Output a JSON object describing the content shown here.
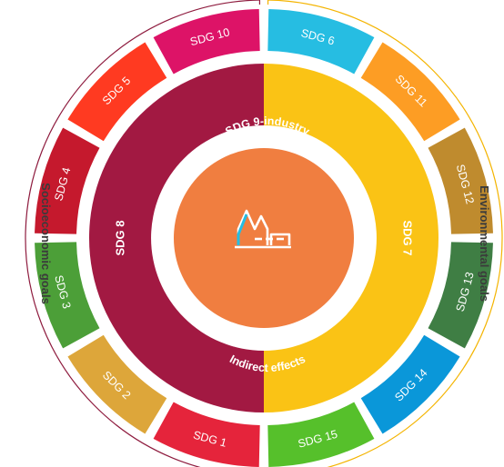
{
  "center": {
    "top_label": "SDG 9-industry",
    "bottom_label": "Indirect effects",
    "icon": "factory-icon",
    "color": "#F07E40"
  },
  "inner_ring": [
    {
      "label": "SDG 7",
      "color": "#FAC315"
    },
    {
      "label": "SDG 8",
      "color": "#A21942"
    }
  ],
  "outer_ring": [
    {
      "label": "SDG 6",
      "color": "#26BDE2"
    },
    {
      "label": "SDG 11",
      "color": "#FD9D24"
    },
    {
      "label": "SDG 12",
      "color": "#BF8B2E"
    },
    {
      "label": "SDG 13",
      "color": "#3F7E44"
    },
    {
      "label": "SDG 14",
      "color": "#0A97D9"
    },
    {
      "label": "SDG 15",
      "color": "#56C02B"
    },
    {
      "label": "SDG 1",
      "color": "#E5243B"
    },
    {
      "label": "SDG 2",
      "color": "#DDA63A"
    },
    {
      "label": "SDG 3",
      "color": "#4C9F38"
    },
    {
      "label": "SDG 4",
      "color": "#C5192D"
    },
    {
      "label": "SDG 5",
      "color": "#FF3A21"
    },
    {
      "label": "SDG 10",
      "color": "#DD1367"
    }
  ],
  "side_labels": {
    "environmental": {
      "text": "Environmental goals",
      "color": "#F4B400"
    },
    "socioeconomic": {
      "text": "Socioeconomic goals",
      "color": "#8E1B3E"
    }
  }
}
